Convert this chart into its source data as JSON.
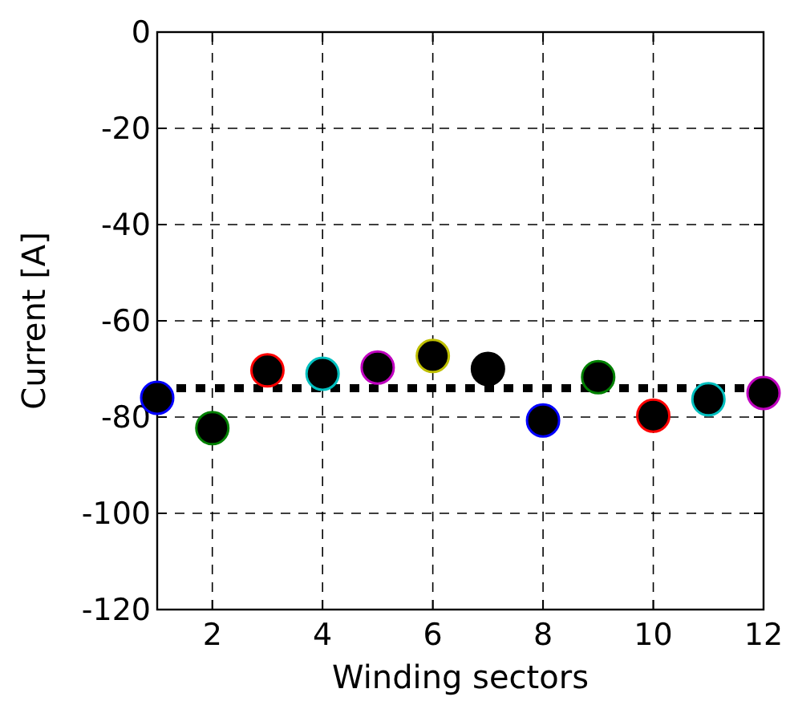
{
  "chart_data": {
    "type": "scatter",
    "xlabel": "Winding sectors",
    "ylabel": "Current [A]",
    "x": [
      1,
      2,
      3,
      4,
      5,
      6,
      7,
      8,
      9,
      10,
      11,
      12
    ],
    "series": [
      {
        "color": "#000000",
        "colors": [
          "#0000ff",
          "#008000",
          "#ff0000",
          "#00bfbf",
          "#bf00bf",
          "#bfbf00",
          "#000000",
          "#0000ff",
          "#008000",
          "#ff0000",
          "#00bfbf",
          "#bf00bf"
        ],
        "values": [
          -76,
          -82.3,
          -70.3,
          -71,
          -69.7,
          -67.3,
          -70,
          -80.7,
          -71.7,
          -79.7,
          -76.3,
          -75
        ]
      }
    ],
    "xlim": [
      1,
      12
    ],
    "xticks": [
      2,
      4,
      6,
      8,
      10,
      12
    ],
    "ylim": [
      -120,
      0
    ],
    "yticks": [
      -120,
      -100,
      -80,
      -60,
      -40,
      -20,
      0
    ],
    "ref_lines": [
      {
        "axis": "y",
        "value": -74,
        "color": "#000000",
        "line_style": "dotted"
      }
    ],
    "grid": true,
    "marker": "circle"
  }
}
